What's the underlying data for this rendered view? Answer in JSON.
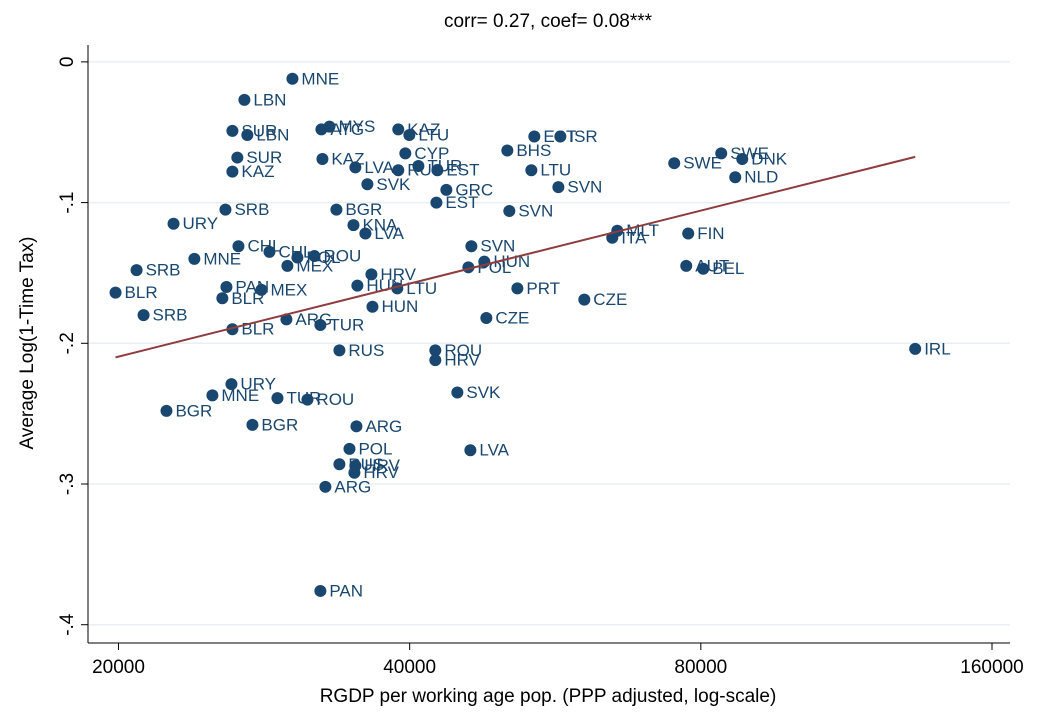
{
  "chart_data": {
    "type": "scatter",
    "title": "corr= 0.27, coef= 0.08***",
    "xlabel": "RGDP per working age pop. (PPP adjusted, log-scale)",
    "ylabel": "Average Log(1-Time Tax)",
    "xscale": "log",
    "grid": true,
    "color": "#1a476f",
    "xlim": [
      18600,
      167000
    ],
    "ylim": [
      -0.413,
      0.012
    ],
    "xticks": [
      20000,
      40000,
      80000,
      160000
    ],
    "yticks": [
      0,
      {
        "value": -0.1,
        "label": "-.1"
      },
      {
        "value": -0.2,
        "label": "-.2"
      },
      {
        "value": -0.3,
        "label": "-.3"
      },
      {
        "value": -0.4,
        "label": "-.4"
      }
    ],
    "x": [
      30260,
      26990,
      26230,
      27180,
      33050,
      32420,
      38930,
      39970,
      53820,
      57260,
      50470,
      26540,
      32500,
      39590,
      83980,
      88290,
      75090,
      26230,
      35150,
      38930,
      40840,
      42730,
      53440,
      86830,
      36170,
      56990,
      43650,
      42630,
      25800,
      33600,
      50710,
      22800,
      34990,
      36000,
      65570,
      64790,
      77630,
      26610,
      28650,
      46330,
      23960,
      31890,
      30620,
      29900,
      36520,
      47780,
      46000,
      77270,
      80460,
      20880,
      25860,
      28110,
      35320,
      38840,
      51690,
      60620,
      19860,
      25610,
      36610,
      21230,
      29830,
      32340,
      48010,
      26230,
      33840,
      42520,
      42520,
      133260,
      26170,
      25010,
      29200,
      31360,
      44810,
      22420,
      27510,
      35240,
      34660,
      46220,
      33840,
      35150,
      35070,
      32730,
      32340
    ],
    "values": [
      -0.012,
      -0.027,
      -0.049,
      -0.052,
      -0.046,
      -0.048,
      -0.048,
      -0.052,
      -0.053,
      -0.053,
      -0.063,
      -0.068,
      -0.069,
      -0.065,
      -0.065,
      -0.069,
      -0.072,
      -0.078,
      -0.075,
      -0.077,
      -0.074,
      -0.077,
      -0.077,
      -0.082,
      -0.087,
      -0.089,
      -0.091,
      -0.1,
      -0.105,
      -0.105,
      -0.106,
      -0.115,
      -0.116,
      -0.122,
      -0.12,
      -0.125,
      -0.122,
      -0.131,
      -0.135,
      -0.131,
      -0.14,
      -0.138,
      -0.139,
      -0.145,
      -0.151,
      -0.142,
      -0.146,
      -0.145,
      -0.147,
      -0.148,
      -0.16,
      -0.162,
      -0.159,
      -0.161,
      -0.161,
      -0.169,
      -0.164,
      -0.168,
      -0.174,
      -0.18,
      -0.183,
      -0.187,
      -0.182,
      -0.19,
      -0.205,
      -0.205,
      -0.212,
      -0.204,
      -0.229,
      -0.237,
      -0.239,
      -0.24,
      -0.235,
      -0.248,
      -0.258,
      -0.259,
      -0.275,
      -0.276,
      -0.286,
      -0.287,
      -0.292,
      -0.302,
      -0.376
    ],
    "labels": [
      "MNE",
      "LBN",
      "SUR",
      "LBN",
      "MYS",
      "ATG",
      "KAZ",
      "LTU",
      "EST",
      "ISR",
      "BHS",
      "SUR",
      "KAZ",
      "CYP",
      "SWE",
      "DNK",
      "SWE",
      "KAZ",
      "LVA",
      "RUS",
      "TUR",
      "EST",
      "LTU",
      "NLD",
      "SVK",
      "SVN",
      "GRC",
      "EST",
      "SRB",
      "BGR",
      "SVN",
      "URY",
      "KNA",
      "LVA",
      "MLT",
      "ITA",
      "FIN",
      "CHL",
      "CHL",
      "SVN",
      "MNE",
      "ROU",
      "POL",
      "MEX",
      "HRV",
      "HUN",
      "POL",
      "AUT",
      "BEL",
      "SRB",
      "PAN",
      "MEX",
      "HUN",
      "LTU",
      "PRT",
      "CZE",
      "BLR",
      "BLR",
      "HUN",
      "SRB",
      "ARG",
      "TUR",
      "CZE",
      "BLR",
      "RUS",
      "ROU",
      "HRV",
      "IRL",
      "URY",
      "MNE",
      "TUR",
      "ROU",
      "SVK",
      "BGR",
      "BGR",
      "ARG",
      "POL",
      "LVA",
      "RUS",
      "HRV",
      "HRV",
      "ARG",
      "PAN"
    ],
    "fit": {
      "x": [
        19860,
        133260
      ],
      "values": [
        -0.21,
        -0.0675
      ],
      "color": "#903b3e"
    }
  }
}
